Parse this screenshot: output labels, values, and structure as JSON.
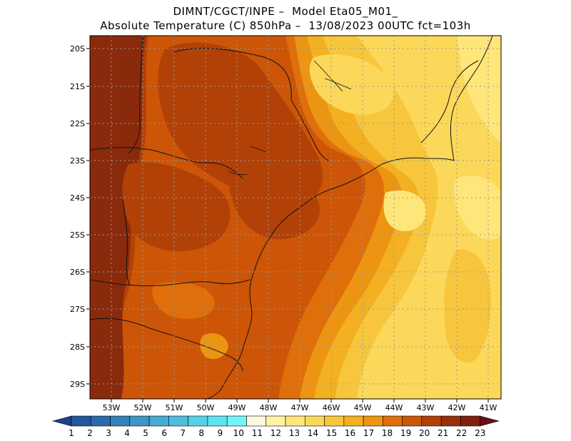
{
  "header": {
    "line1": "DIMNT/CGCT/INPE –  Model Eta05_M01_",
    "line2": "Absolute Temperature (C) 850hPa –  13/08/2023 00UTC fct=103h"
  },
  "map": {
    "lat_labels": [
      "20S",
      "21S",
      "22S",
      "23S",
      "24S",
      "25S",
      "26S",
      "27S",
      "28S",
      "29S"
    ],
    "lon_labels": [
      "53W",
      "52W",
      "51W",
      "50W",
      "49W",
      "48W",
      "47W",
      "46W",
      "45W",
      "44W",
      "43W",
      "42W",
      "41W"
    ],
    "lat_range_deg_south": [
      19.3,
      29.4
    ],
    "lon_range_deg_west": [
      53.6,
      40.6
    ]
  },
  "colorbar": {
    "labels": [
      "1",
      "2",
      "3",
      "4",
      "5",
      "6",
      "7",
      "8",
      "9",
      "10",
      "11",
      "12",
      "13",
      "14",
      "15",
      "16",
      "17",
      "18",
      "19",
      "20",
      "21",
      "22",
      "23"
    ],
    "colors": [
      "#1f3f8f",
      "#25559c",
      "#2c6aaa",
      "#3580b8",
      "#3f95c6",
      "#48a9d2",
      "#4fbddc",
      "#56d0e6",
      "#5fe3ee",
      "#71f5f7",
      "#fff7dd",
      "#fff3a8",
      "#ffe67a",
      "#fcd85a",
      "#f7c63c",
      "#f3b021",
      "#ec9512",
      "#de6f0a",
      "#cc5507",
      "#b24107",
      "#98300a",
      "#80210f",
      "#6c0f1a"
    ]
  }
}
